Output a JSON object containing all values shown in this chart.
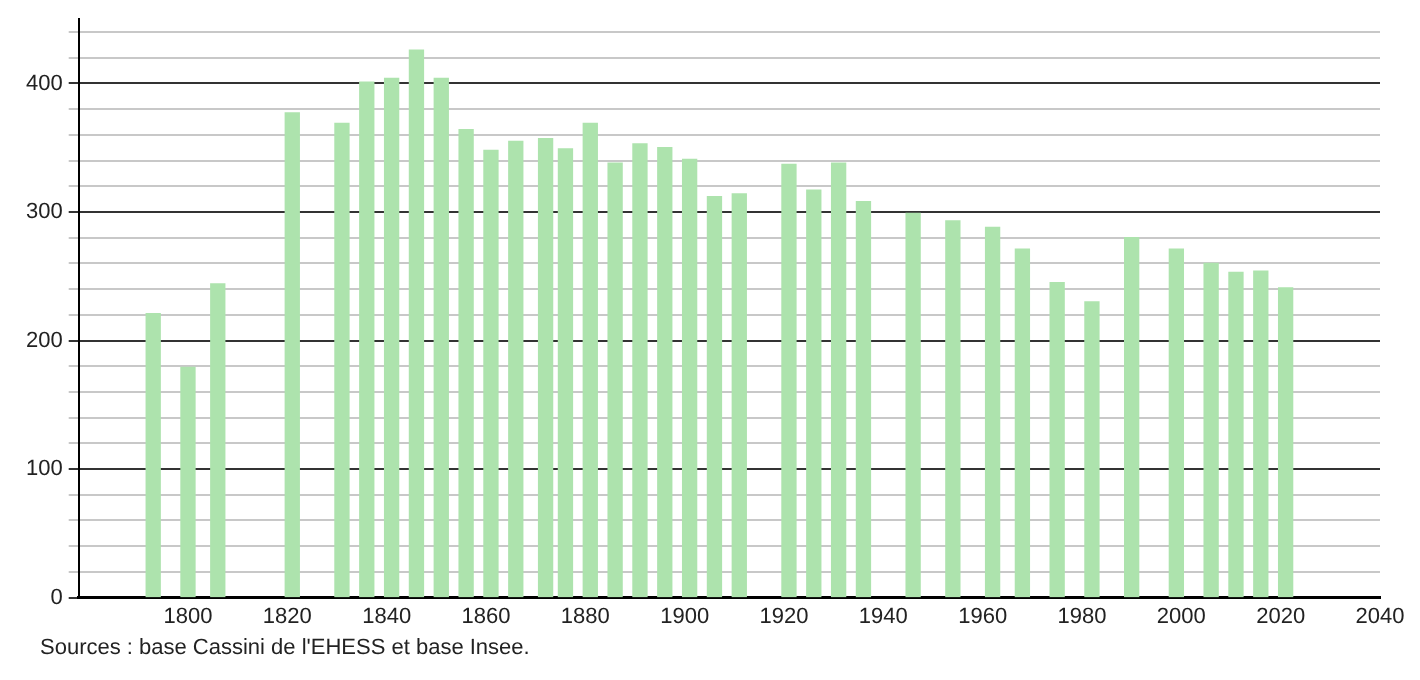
{
  "chart_data": {
    "type": "bar",
    "x": [
      1793,
      1800,
      1806,
      1821,
      1831,
      1836,
      1841,
      1846,
      1851,
      1856,
      1861,
      1866,
      1872,
      1876,
      1881,
      1886,
      1891,
      1896,
      1901,
      1906,
      1911,
      1921,
      1926,
      1931,
      1936,
      1946,
      1954,
      1962,
      1968,
      1975,
      1982,
      1990,
      1999,
      2006,
      2011,
      2016,
      2021
    ],
    "values": [
      221,
      179,
      244,
      377,
      369,
      401,
      404,
      426,
      404,
      364,
      348,
      355,
      357,
      349,
      369,
      338,
      353,
      350,
      341,
      312,
      314,
      337,
      317,
      338,
      308,
      299,
      293,
      288,
      271,
      245,
      230,
      280,
      271,
      260,
      253,
      254,
      241
    ],
    "color": "#ade3ad",
    "xlim": [
      1778,
      2040
    ],
    "xticks": [
      1800,
      1820,
      1840,
      1860,
      1880,
      1900,
      1920,
      1940,
      1960,
      1980,
      2000,
      2020,
      2040
    ],
    "ylim": [
      0,
      450
    ],
    "yticks": [
      0,
      {
        "value": 20,
        "label": null
      },
      {
        "value": 40,
        "label": null
      },
      {
        "value": 60,
        "label": null
      },
      {
        "value": 80,
        "label": null
      },
      100,
      {
        "value": 120,
        "label": null
      },
      {
        "value": 140,
        "label": null
      },
      {
        "value": 160,
        "label": null
      },
      {
        "value": 180,
        "label": null
      },
      200,
      {
        "value": 220,
        "label": null
      },
      {
        "value": 240,
        "label": null
      },
      {
        "value": 260,
        "label": null
      },
      {
        "value": 280,
        "label": null
      },
      300,
      {
        "value": 320,
        "label": null
      },
      {
        "value": 340,
        "label": null
      },
      {
        "value": 360,
        "label": null
      },
      {
        "value": 380,
        "label": null
      },
      400,
      {
        "value": 420,
        "label": null
      },
      {
        "value": 440,
        "label": null
      }
    ],
    "grid": "y",
    "legend": false,
    "annotations": [
      "Sources : base Cassini de l'EHESS et base Insee."
    ]
  }
}
